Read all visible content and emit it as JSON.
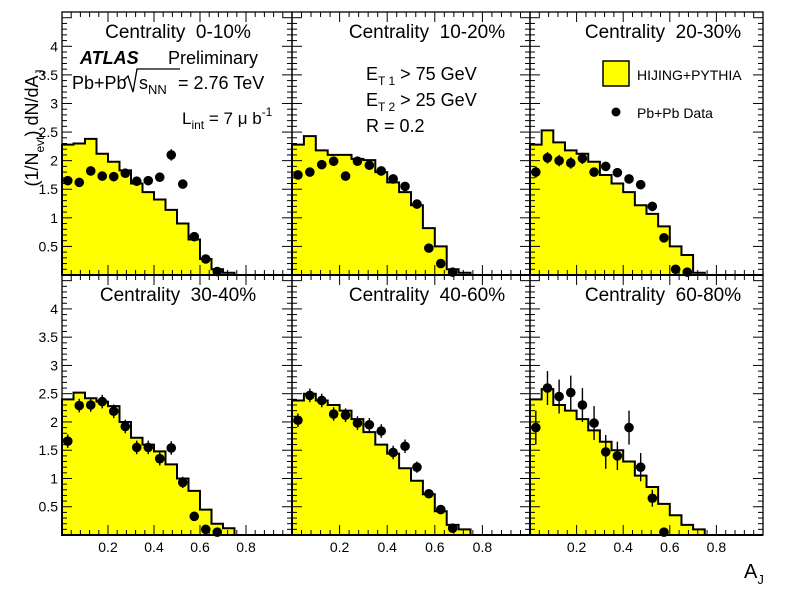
{
  "colors": {
    "hist_fill": "#ffff00",
    "marker": "#000000"
  },
  "chart_data": {
    "type": "multi-panel histogram with data points",
    "ylabel": "(1/N_evt) dN/dA_J",
    "ylabel_parts": {
      "a": "(1/N",
      "a_sub": "evt",
      "b": ") dN/dA",
      "b_sub": "J"
    },
    "xlabel": "A",
    "xlabel_sub": "J",
    "xlim": [
      0,
      1
    ],
    "ylim": [
      0,
      4.6
    ],
    "x_ticks": [
      0.2,
      0.4,
      0.6,
      0.8
    ],
    "x_tick_labels": [
      "0.2",
      "0.4",
      "0.6",
      "0.8"
    ],
    "y_ticks": [
      0.5,
      1,
      1.5,
      2,
      2.5,
      3,
      3.5,
      4
    ],
    "y_tick_labels": [
      "0.5",
      "1",
      "1.5",
      "2",
      "2.5",
      "3",
      "3.5",
      "4"
    ],
    "bin_edges": [
      0,
      0.05,
      0.1,
      0.15,
      0.2,
      0.25,
      0.3,
      0.35,
      0.4,
      0.45,
      0.5,
      0.55,
      0.6,
      0.65,
      0.7,
      0.75,
      0.8,
      0.85,
      0.9,
      0.95,
      1.0
    ],
    "legend": {
      "placement": "top-right",
      "hist_label": "HIJING+PYTHIA",
      "data_label": "Pb+Pb Data"
    },
    "annotations": {
      "atlas": "ATLAS",
      "preliminary": "Preliminary",
      "collision": "Pb+Pb",
      "sqrt_s": "s",
      "sqrt_s_sub": "NN",
      "energy": " = 2.76 TeV",
      "lumi_prefix": "L",
      "lumi_sub": "int",
      "lumi_value": " = 7 μ b",
      "lumi_sup": "-1",
      "et1_prefix": "E",
      "et1_sub": "T 1",
      "et1_value": " > 75 GeV",
      "et2_prefix": "E",
      "et2_sub": "T 2",
      "et2_value": " > 25 GeV",
      "radius": "R = 0.2"
    },
    "panels": [
      {
        "title": "Centrality  0-10%",
        "hist": [
          2.28,
          2.3,
          2.38,
          2.12,
          1.98,
          1.83,
          1.6,
          1.45,
          1.32,
          1.14,
          0.9,
          0.62,
          0.28,
          0.1,
          0.04,
          0.0,
          0.0,
          0.0,
          0.0,
          0.0
        ],
        "points": {
          "x": [
            0.025,
            0.075,
            0.125,
            0.175,
            0.225,
            0.275,
            0.325,
            0.375,
            0.425,
            0.475,
            0.525,
            0.575,
            0.625,
            0.675
          ],
          "y": [
            1.65,
            1.62,
            1.82,
            1.73,
            1.72,
            1.78,
            1.64,
            1.65,
            1.71,
            2.1,
            1.59,
            0.67,
            0.28,
            0.06
          ],
          "err": [
            0.08,
            0.08,
            0.08,
            0.08,
            0.08,
            0.08,
            0.08,
            0.08,
            0.08,
            0.1,
            0.08,
            0.05,
            0.04,
            0.02
          ]
        }
      },
      {
        "title": "Centrality  10-20%",
        "hist": [
          2.28,
          2.43,
          2.18,
          2.1,
          2.1,
          2.03,
          2.01,
          1.8,
          1.62,
          1.45,
          1.22,
          0.82,
          0.5,
          0.1,
          0.04,
          0.0,
          0.0,
          0.0,
          0.0,
          0.0
        ],
        "points": {
          "x": [
            0.025,
            0.075,
            0.125,
            0.175,
            0.225,
            0.275,
            0.325,
            0.375,
            0.425,
            0.475,
            0.525,
            0.575,
            0.625,
            0.675
          ],
          "y": [
            1.75,
            1.8,
            1.93,
            1.99,
            1.73,
            1.99,
            1.92,
            1.82,
            1.68,
            1.55,
            1.24,
            0.47,
            0.2,
            0.05
          ],
          "err": [
            0.08,
            0.08,
            0.08,
            0.08,
            0.08,
            0.08,
            0.08,
            0.08,
            0.08,
            0.08,
            0.08,
            0.05,
            0.04,
            0.02
          ]
        }
      },
      {
        "title": "Centrality  20-30%",
        "hist": [
          2.28,
          2.53,
          2.32,
          2.18,
          2.12,
          1.98,
          1.75,
          1.6,
          1.45,
          1.22,
          1.07,
          0.85,
          0.5,
          0.35,
          0.04,
          0.0,
          0.0,
          0.0,
          0.0,
          0.0
        ],
        "points": {
          "x": [
            0.025,
            0.075,
            0.125,
            0.175,
            0.225,
            0.275,
            0.325,
            0.375,
            0.425,
            0.475,
            0.525,
            0.575,
            0.625,
            0.675
          ],
          "y": [
            1.8,
            2.05,
            2.0,
            1.96,
            2.04,
            1.8,
            1.9,
            1.79,
            1.68,
            1.58,
            1.2,
            0.65,
            0.1,
            0.05
          ],
          "err": [
            0.1,
            0.1,
            0.1,
            0.1,
            0.1,
            0.08,
            0.08,
            0.08,
            0.08,
            0.08,
            0.08,
            0.05,
            0.04,
            0.02
          ]
        }
      },
      {
        "title": "Centrality  30-40%",
        "hist": [
          2.4,
          2.52,
          2.42,
          2.36,
          2.28,
          2.0,
          1.72,
          1.6,
          1.48,
          1.25,
          1.0,
          0.78,
          0.45,
          0.2,
          0.12,
          0.0,
          0.0,
          0.0,
          0.0,
          0.0
        ],
        "points": {
          "x": [
            0.025,
            0.075,
            0.125,
            0.175,
            0.225,
            0.275,
            0.325,
            0.375,
            0.425,
            0.475,
            0.525,
            0.575,
            0.625,
            0.675
          ],
          "y": [
            1.66,
            2.29,
            2.3,
            2.36,
            2.19,
            1.92,
            1.55,
            1.55,
            1.35,
            1.54,
            0.93,
            0.33,
            0.1,
            0.05
          ],
          "err": [
            0.12,
            0.12,
            0.12,
            0.12,
            0.12,
            0.12,
            0.12,
            0.12,
            0.12,
            0.12,
            0.1,
            0.06,
            0.04,
            0.02
          ]
        }
      },
      {
        "title": "Centrality  40-60%",
        "hist": [
          2.38,
          2.5,
          2.38,
          2.3,
          2.2,
          2.05,
          1.82,
          1.6,
          1.44,
          1.18,
          0.96,
          0.72,
          0.42,
          0.18,
          0.1,
          0.0,
          0.0,
          0.0,
          0.0,
          0.0
        ],
        "points": {
          "x": [
            0.025,
            0.075,
            0.125,
            0.175,
            0.225,
            0.275,
            0.325,
            0.375,
            0.425,
            0.475,
            0.525,
            0.575,
            0.625,
            0.675
          ],
          "y": [
            2.03,
            2.47,
            2.38,
            2.14,
            2.12,
            1.98,
            1.95,
            1.84,
            1.46,
            1.57,
            1.2,
            0.73,
            0.45,
            0.12
          ],
          "err": [
            0.12,
            0.12,
            0.12,
            0.12,
            0.12,
            0.12,
            0.12,
            0.12,
            0.12,
            0.12,
            0.1,
            0.06,
            0.05,
            0.03
          ]
        }
      },
      {
        "title": "Centrality  60-80%",
        "hist": [
          2.4,
          2.58,
          2.3,
          2.2,
          2.05,
          1.85,
          1.65,
          1.5,
          1.3,
          1.05,
          0.85,
          0.55,
          0.35,
          0.18,
          0.1,
          0.0,
          0.0,
          0.0,
          0.0,
          0.0
        ],
        "points": {
          "x": [
            0.025,
            0.075,
            0.125,
            0.175,
            0.225,
            0.275,
            0.325,
            0.375,
            0.425,
            0.475,
            0.525,
            0.575
          ],
          "y": [
            1.9,
            2.6,
            2.45,
            2.52,
            2.3,
            1.98,
            1.47,
            1.4,
            1.9,
            1.2,
            0.65,
            0.05
          ],
          "err": [
            0.3,
            0.3,
            0.3,
            0.3,
            0.3,
            0.3,
            0.3,
            0.25,
            0.3,
            0.25,
            0.15,
            0.05
          ]
        }
      }
    ]
  }
}
